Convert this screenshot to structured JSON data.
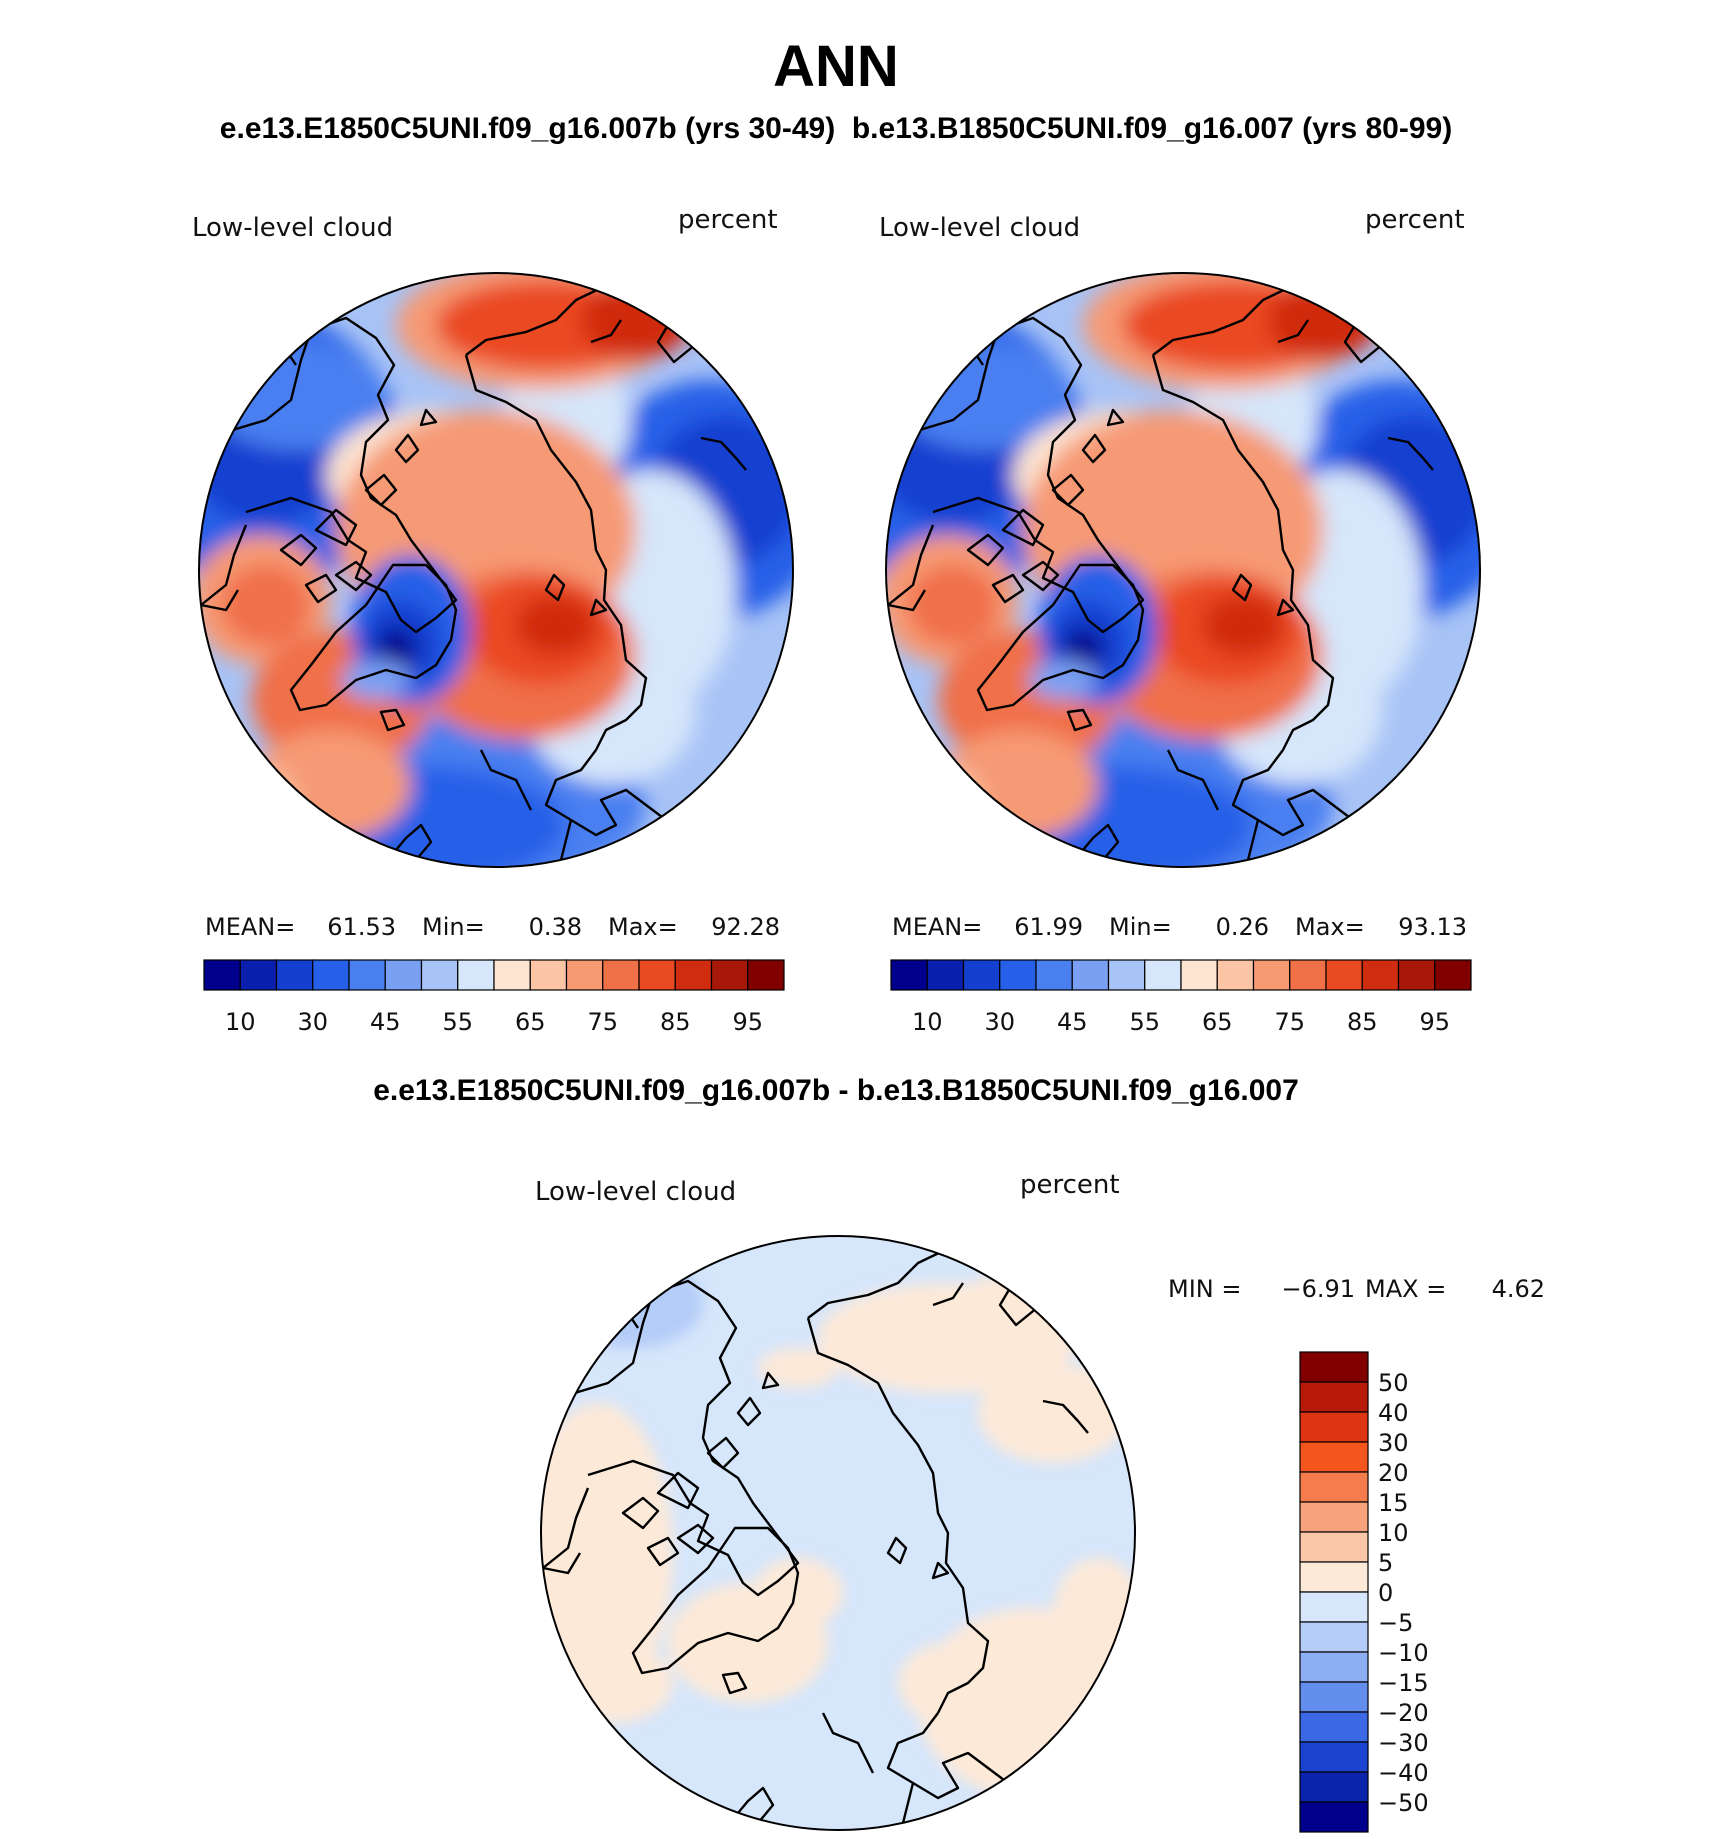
{
  "chart_data": [
    {
      "type": "heatmap",
      "projection": "north-polar-stereographic",
      "variable": "Low-level cloud",
      "units": "percent",
      "case": "e.e13.E1850C5UNI.f09_g16.007b (yrs 30-49)",
      "stats": {
        "mean_label": "MEAN=",
        "mean": "61.53",
        "min_label": "Min=",
        "min": "0.38",
        "max_label": "Max=",
        "max": "92.28"
      },
      "colorbar_ticks": [
        "10",
        "30",
        "45",
        "55",
        "65",
        "75",
        "85",
        "95"
      ],
      "levels": [
        10,
        20,
        30,
        40,
        45,
        50,
        55,
        60,
        65,
        70,
        75,
        80,
        85,
        90,
        95
      ]
    },
    {
      "type": "heatmap",
      "projection": "north-polar-stereographic",
      "variable": "Low-level cloud",
      "units": "percent",
      "case": "b.e13.B1850C5UNI.f09_g16.007 (yrs 80-99)",
      "stats": {
        "mean_label": "MEAN=",
        "mean": "61.99",
        "min_label": "Min=",
        "min": "0.26",
        "max_label": "Max=",
        "max": "93.13"
      },
      "colorbar_ticks": [
        "10",
        "30",
        "45",
        "55",
        "65",
        "75",
        "85",
        "95"
      ],
      "levels": [
        10,
        20,
        30,
        40,
        45,
        50,
        55,
        60,
        65,
        70,
        75,
        80,
        85,
        90,
        95
      ]
    },
    {
      "type": "heatmap",
      "projection": "north-polar-stereographic",
      "variable": "Low-level cloud",
      "units": "percent",
      "case": "e.e13.E1850C5UNI.f09_g16.007b - b.e13.B1850C5UNI.f09_g16.007",
      "stats": {
        "min_label": "MIN =",
        "min": "−6.91",
        "max_label": "MAX =",
        "max": "4.62"
      },
      "colorbar_ticks": [
        "50",
        "40",
        "30",
        "20",
        "15",
        "10",
        "5",
        "0",
        "−5",
        "−10",
        "−15",
        "−20",
        "−30",
        "−40",
        "−50"
      ]
    }
  ],
  "figure": {
    "title": "ANN",
    "subtitle": "e.e13.E1850C5UNI.f09_g16.007b (yrs 30-49)  b.e13.B1850C5UNI.f09_g16.007 (yrs 80-99)",
    "diff_title": "e.e13.E1850C5UNI.f09_g16.007b - b.e13.B1850C5UNI.f09_g16.007"
  },
  "colors": {
    "sequential": [
      "#00008c",
      "#0a1fad",
      "#1440d0",
      "#2660e8",
      "#4a7ff0",
      "#7aa0f3",
      "#a8c3f6",
      "#d6e6fb",
      "#fde5d2",
      "#fbc5a6",
      "#f69a74",
      "#f07048",
      "#ea4a22",
      "#d02c10",
      "#a81808",
      "#800000"
    ],
    "diverging": [
      "#800000",
      "#b81a0a",
      "#dd3512",
      "#f5561d",
      "#f57d4d",
      "#f8a37c",
      "#fbc7a9",
      "#fde9d8",
      "#d6e6fb",
      "#b4ccf8",
      "#8eaef3",
      "#648eee",
      "#3b69e5",
      "#1a44d0",
      "#0a24ac",
      "#00008c"
    ]
  }
}
